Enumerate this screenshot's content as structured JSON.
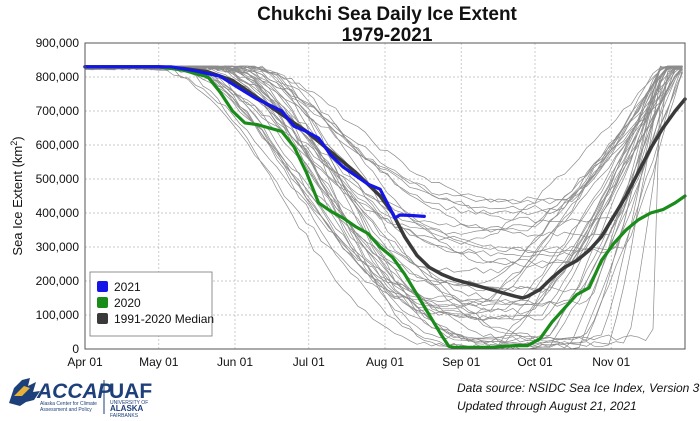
{
  "chart_data": {
    "type": "line",
    "title": "Chukchi Sea Daily Ice Extent",
    "subtitle": "1979-2021",
    "ylabel": "Sea Ice Extent (km",
    "ylabel_sup": "2",
    "ylabel_close": ")",
    "xlabel": "",
    "ylim": [
      0,
      900000
    ],
    "xlim": [
      0,
      244
    ],
    "grid": true,
    "x_ticks": [
      {
        "day": 0,
        "label": "Apr 01"
      },
      {
        "day": 30,
        "label": "May 01"
      },
      {
        "day": 61,
        "label": "Jun 01"
      },
      {
        "day": 91,
        "label": "Jul 01"
      },
      {
        "day": 122,
        "label": "Aug 01"
      },
      {
        "day": 153,
        "label": "Sep 01"
      },
      {
        "day": 183,
        "label": "Oct 01"
      },
      {
        "day": 214,
        "label": "Nov 01"
      }
    ],
    "y_ticks": [
      {
        "value": 0,
        "label": "0"
      },
      {
        "value": 100000,
        "label": "100,000"
      },
      {
        "value": 200000,
        "label": "200,000"
      },
      {
        "value": 300000,
        "label": "300,000"
      },
      {
        "value": 400000,
        "label": "400,000"
      },
      {
        "value": 500000,
        "label": "500,000"
      },
      {
        "value": 600000,
        "label": "600,000"
      },
      {
        "value": 700000,
        "label": "700,000"
      },
      {
        "value": 800000,
        "label": "800,000"
      },
      {
        "value": 900000,
        "label": "900,000"
      }
    ],
    "legend_position": "bottom-left",
    "series": [
      {
        "name": "2021",
        "color": "#1515e8",
        "x": [
          0,
          20,
          35,
          45,
          55,
          62,
          70,
          80,
          85,
          90,
          95,
          100,
          105,
          110,
          115,
          120,
          125,
          126,
          128,
          132,
          138
        ],
        "y": [
          830000,
          830000,
          830000,
          818000,
          802000,
          770000,
          735000,
          700000,
          655000,
          640000,
          620000,
          570000,
          535000,
          510000,
          485000,
          470000,
          400000,
          385000,
          394000,
          393000,
          390000
        ]
      },
      {
        "name": "2020",
        "color": "#198c19",
        "x": [
          0,
          30,
          40,
          50,
          55,
          60,
          65,
          70,
          75,
          80,
          85,
          90,
          95,
          100,
          105,
          110,
          115,
          120,
          125,
          130,
          135,
          140,
          145,
          148,
          150,
          155,
          165,
          175,
          180,
          185,
          190,
          195,
          200,
          205,
          210,
          215,
          220,
          225,
          230,
          235,
          240,
          244
        ],
        "y": [
          830000,
          830000,
          820000,
          800000,
          755000,
          700000,
          665000,
          660000,
          650000,
          640000,
          595000,
          520000,
          430000,
          405000,
          385000,
          360000,
          340000,
          300000,
          270000,
          220000,
          160000,
          100000,
          40000,
          8000,
          5000,
          5000,
          5000,
          10000,
          10000,
          30000,
          80000,
          120000,
          160000,
          180000,
          260000,
          310000,
          350000,
          380000,
          400000,
          410000,
          430000,
          450000
        ]
      },
      {
        "name": "1991-2020 Median",
        "color": "#3a3a3a",
        "x": [
          0,
          30,
          40,
          50,
          60,
          70,
          80,
          90,
          100,
          110,
          120,
          125,
          130,
          135,
          140,
          145,
          150,
          155,
          160,
          165,
          170,
          175,
          178,
          180,
          185,
          190,
          195,
          200,
          205,
          210,
          215,
          220,
          225,
          230,
          235,
          240,
          244
        ],
        "y": [
          830000,
          830000,
          825000,
          815000,
          790000,
          740000,
          690000,
          640000,
          580000,
          520000,
          450000,
          400000,
          330000,
          275000,
          240000,
          220000,
          205000,
          195000,
          185000,
          175000,
          165000,
          155000,
          150000,
          155000,
          175000,
          210000,
          240000,
          260000,
          290000,
          330000,
          390000,
          450000,
          520000,
          590000,
          650000,
          700000,
          735000
        ]
      }
    ],
    "background_years_count": 42,
    "background_color": "#8c8c8c"
  },
  "credit": {
    "line1": "Data source: NSIDC Sea Ice Index, Version 3",
    "line2": "Updated through August 21, 2021"
  },
  "logo": {
    "accap": "ACCAP",
    "uaf": "UAF",
    "accap_sub1": "Alaska Center for Climate",
    "accap_sub2": "Assessment and Policy",
    "uaf_sub1": "UNIVERSITY OF",
    "uaf_sub2": "ALASKA",
    "uaf_sub3": "FAIRBANKS"
  }
}
